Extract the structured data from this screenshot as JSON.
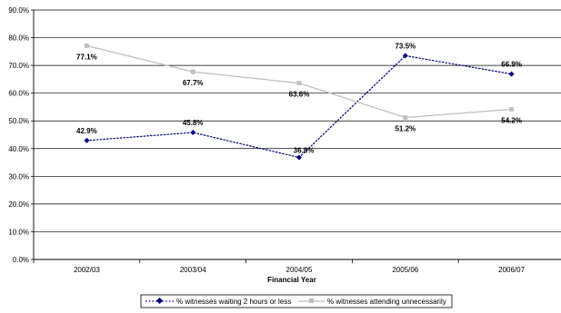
{
  "chart_data": {
    "type": "line",
    "title": "",
    "xlabel": "Financial Year",
    "ylabel": "",
    "categories": [
      "2002/03",
      "2003/04",
      "2004/05",
      "2005/06",
      "2006/07"
    ],
    "ylim": [
      0,
      90
    ],
    "ytick_step": 10,
    "yticks": [
      "0.0%",
      "10.0%",
      "20.0%",
      "30.0%",
      "40.0%",
      "50.0%",
      "60.0%",
      "70.0%",
      "80.0%",
      "90.0%"
    ],
    "grid": true,
    "legend_position": "bottom-center",
    "series": [
      {
        "name": "% witnesses waiting 2 hours or less",
        "values": [
          42.9,
          45.8,
          36.8,
          73.5,
          66.9
        ],
        "labels": [
          "42.9%",
          "45.8%",
          "36.8%",
          "73.5%",
          "66.9%"
        ],
        "color": "#000080",
        "line_style": "dotted",
        "marker": "diamond"
      },
      {
        "name": "% witnesses attending unnecessarily",
        "values": [
          77.1,
          67.7,
          63.6,
          51.2,
          54.2
        ],
        "labels": [
          "77.1%",
          "67.7%",
          "63.6%",
          "51.2%",
          "54.2%"
        ],
        "color": "#c0c0c0",
        "line_style": "solid",
        "marker": "square"
      }
    ]
  }
}
